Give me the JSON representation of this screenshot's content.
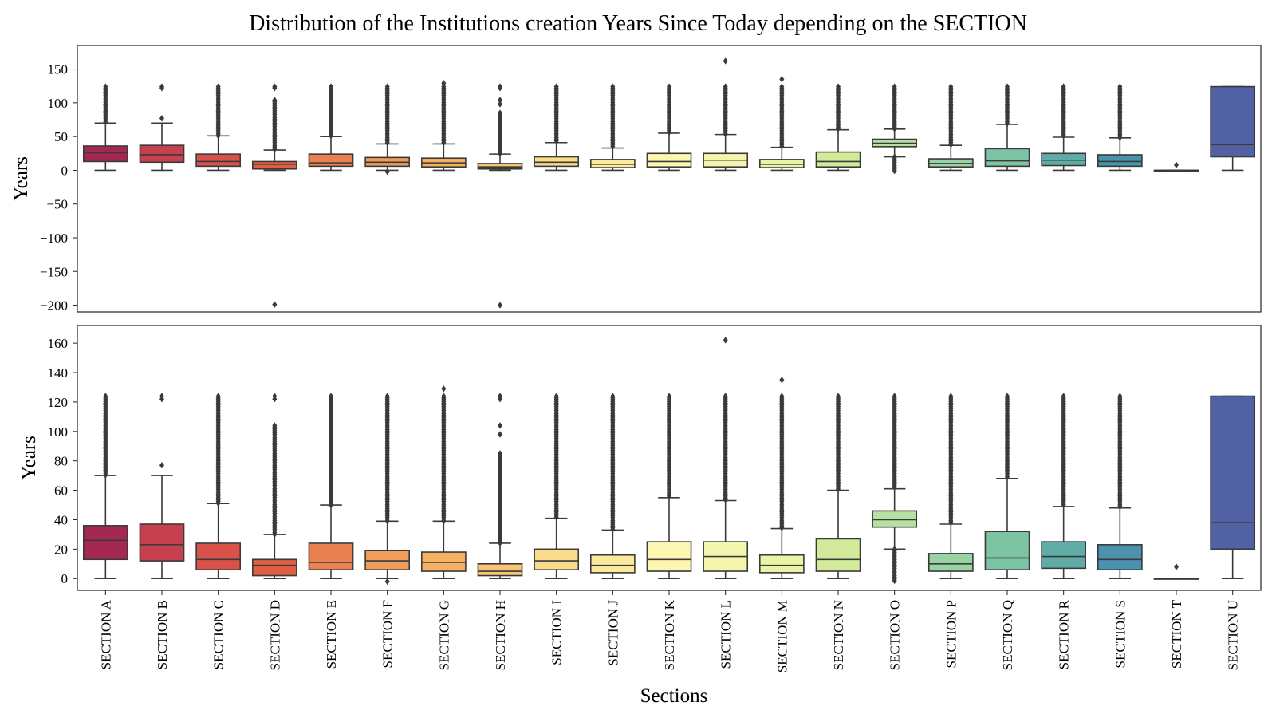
{
  "chart_data": {
    "type": "box",
    "title": "Distribution of the Institutions creation Years Since Today depending on the SECTION",
    "xlabel": "Sections",
    "ylabel": "Years",
    "categories": [
      "SECTION A",
      "SECTION B",
      "SECTION C",
      "SECTION D",
      "SECTION E",
      "SECTION F",
      "SECTION G",
      "SECTION H",
      "SECTION I",
      "SECTION J",
      "SECTION K",
      "SECTION L",
      "SECTION M",
      "SECTION N",
      "SECTION O",
      "SECTION P",
      "SECTION Q",
      "SECTION R",
      "SECTION S",
      "SECTION T",
      "SECTION U"
    ],
    "colors": [
      "#a4284f",
      "#c7404f",
      "#d9524a",
      "#e05e44",
      "#ea8150",
      "#f09c5a",
      "#f5b062",
      "#f8c672",
      "#fadd8c",
      "#fbe99d",
      "#fbf7b0",
      "#f4f6ad",
      "#eaf3a6",
      "#d3ea9b",
      "#b7e0a3",
      "#98d3a4",
      "#7cc4a4",
      "#5eaca5",
      "#4a92ad",
      "#4f70ad",
      "#5161a3"
    ],
    "stats": [
      {
        "min": 0,
        "q1": 13,
        "median": 26,
        "q3": 36,
        "max": 70,
        "outlier_range": [
          70,
          124
        ]
      },
      {
        "min": 0,
        "q1": 12,
        "median": 23,
        "q3": 37,
        "max": 70,
        "outliers": [
          77,
          122,
          124
        ]
      },
      {
        "min": 0,
        "q1": 6,
        "median": 13,
        "q3": 24,
        "max": 51,
        "outlier_range": [
          51,
          124
        ]
      },
      {
        "min": 0,
        "q1": 2,
        "median": 9,
        "q3": 13,
        "max": 30,
        "outlier_range": [
          30,
          104
        ],
        "outliers": [
          122,
          124,
          -199
        ]
      },
      {
        "min": 0,
        "q1": 6,
        "median": 11,
        "q3": 24,
        "max": 50,
        "outlier_range": [
          50,
          124
        ]
      },
      {
        "min": 0,
        "q1": 6,
        "median": 12,
        "q3": 19,
        "max": 39,
        "outlier_range": [
          39,
          124
        ],
        "lower_flier": -2
      },
      {
        "min": 0,
        "q1": 5,
        "median": 11,
        "q3": 18,
        "max": 39,
        "outlier_range": [
          39,
          124
        ],
        "outliers": [
          129
        ]
      },
      {
        "min": 0,
        "q1": 2,
        "median": 5,
        "q3": 10,
        "max": 24,
        "outlier_range": [
          24,
          85
        ],
        "outliers": [
          98,
          104,
          122,
          124,
          -200
        ]
      },
      {
        "min": 0,
        "q1": 6,
        "median": 12,
        "q3": 20,
        "max": 41,
        "outlier_range": [
          41,
          124
        ]
      },
      {
        "min": 0,
        "q1": 4,
        "median": 9,
        "q3": 16,
        "max": 33,
        "outlier_range": [
          33,
          124
        ]
      },
      {
        "min": 0,
        "q1": 5,
        "median": 13,
        "q3": 25,
        "max": 55,
        "outlier_range": [
          55,
          124
        ]
      },
      {
        "min": 0,
        "q1": 5,
        "median": 15,
        "q3": 25,
        "max": 53,
        "outlier_range": [
          53,
          124
        ],
        "outliers": [
          162
        ]
      },
      {
        "min": 0,
        "q1": 4,
        "median": 9,
        "q3": 16,
        "max": 34,
        "outlier_range": [
          34,
          124
        ],
        "outliers": [
          135
        ]
      },
      {
        "min": 0,
        "q1": 5,
        "median": 13,
        "q3": 27,
        "max": 60,
        "outlier_range": [
          60,
          124
        ]
      },
      {
        "min": 20,
        "q1": 35,
        "median": 40,
        "q3": 46,
        "max": 61,
        "outlier_range": [
          61,
          124
        ],
        "lower_outlier_range": [
          -2,
          20
        ]
      },
      {
        "min": 0,
        "q1": 5,
        "median": 10,
        "q3": 17,
        "max": 37,
        "outlier_range": [
          37,
          124
        ]
      },
      {
        "min": 0,
        "q1": 6,
        "median": 14,
        "q3": 32,
        "max": 68,
        "outlier_range": [
          68,
          124
        ]
      },
      {
        "min": 0,
        "q1": 7,
        "median": 15,
        "q3": 25,
        "max": 49,
        "outlier_range": [
          49,
          124
        ]
      },
      {
        "min": 0,
        "q1": 6,
        "median": 13,
        "q3": 23,
        "max": 48,
        "outlier_range": [
          48,
          124
        ]
      },
      {
        "min": 0,
        "q1": 0,
        "median": 0,
        "q3": 0,
        "max": 0,
        "outliers": [
          8
        ]
      },
      {
        "min": 0,
        "q1": 20,
        "median": 38,
        "q3": 124,
        "max": 124
      }
    ],
    "panels": [
      {
        "ylim": [
          -210,
          185
        ],
        "yticks": [
          -200,
          -150,
          -100,
          -50,
          0,
          50,
          100,
          150
        ]
      },
      {
        "ylim": [
          -8,
          172
        ],
        "yticks": [
          0,
          20,
          40,
          60,
          80,
          100,
          120,
          140,
          160
        ]
      }
    ],
    "grid": false
  }
}
